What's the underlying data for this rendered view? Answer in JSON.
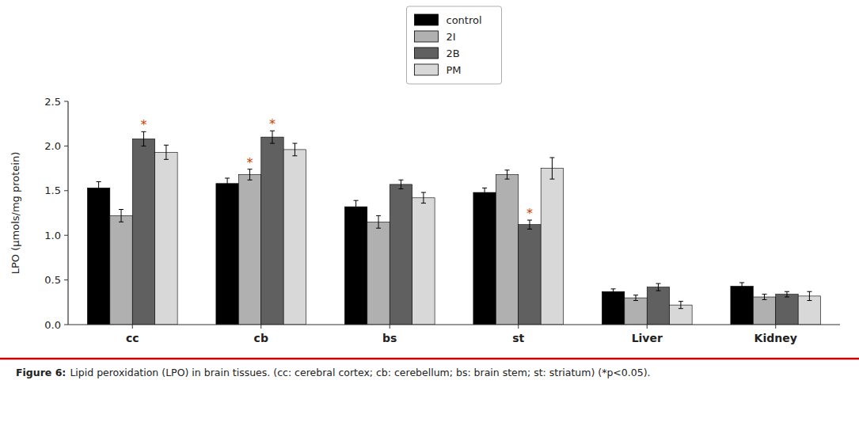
{
  "chart_data": {
    "type": "bar",
    "categories": [
      "cc",
      "cb",
      "bs",
      "st",
      "Liver",
      "Kidney"
    ],
    "series": [
      {
        "name": "control",
        "color": "#000000",
        "values": [
          1.53,
          1.58,
          1.32,
          1.48,
          0.37,
          0.43
        ],
        "errors": [
          0.07,
          0.06,
          0.07,
          0.05,
          0.03,
          0.04
        ]
      },
      {
        "name": "2I",
        "color": "#b0b0b0",
        "values": [
          1.22,
          1.68,
          1.15,
          1.68,
          0.3,
          0.31
        ],
        "errors": [
          0.07,
          0.06,
          0.07,
          0.05,
          0.03,
          0.03
        ]
      },
      {
        "name": "2B",
        "color": "#606060",
        "values": [
          2.08,
          2.1,
          1.57,
          1.12,
          0.42,
          0.34
        ],
        "errors": [
          0.08,
          0.07,
          0.05,
          0.05,
          0.04,
          0.03
        ]
      },
      {
        "name": "PM",
        "color": "#d8d8d8",
        "values": [
          1.93,
          1.96,
          1.42,
          1.75,
          0.22,
          0.32
        ],
        "errors": [
          0.08,
          0.07,
          0.06,
          0.12,
          0.04,
          0.05
        ]
      }
    ],
    "y_label": "LPO (μmols/mg protein)",
    "ylim": [
      0.0,
      2.5
    ],
    "yticks": [
      {
        "value": 0.0,
        "label": "0.0"
      },
      0.5,
      {
        "value": 1.0,
        "label": "1.0"
      },
      1.5,
      {
        "value": 2.0,
        "label": "2.0"
      },
      2.5
    ],
    "annotations": [
      {
        "text": "*",
        "series": 2,
        "category": 0,
        "color": "#cc4400"
      },
      {
        "text": "*",
        "series": 1,
        "category": 1,
        "color": "#cc4400"
      },
      {
        "text": "*",
        "series": 2,
        "category": 1,
        "color": "#cc4400"
      },
      {
        "text": "*",
        "series": 2,
        "category": 3,
        "color": "#cc4400"
      }
    ],
    "caption": {
      "label": "Figure 6:",
      "text": "Lipid peroxidation (LPO) in brain tissues. (cc: cerebral cortex; cb: cerebellum; bs: brain stem; st: striatum) (*p<0.05)."
    },
    "legend": "top",
    "grid": false
  }
}
